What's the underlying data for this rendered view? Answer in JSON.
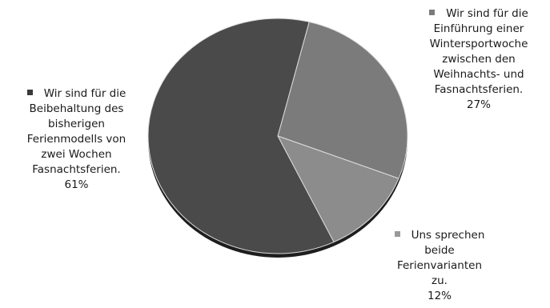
{
  "chart_data": {
    "type": "pie",
    "title": "",
    "slices": [
      {
        "name": "Wir sind für die Beibehaltung des bisherigen Ferienmodells von zwei Wochen Fasnachtsferien.",
        "lines": [
          "Wir sind für die",
          "Beibehaltung des",
          "bisherigen",
          "Ferienmodells von",
          "zwei Wochen",
          "Fasnachtsferien."
        ],
        "value": 61,
        "value_label": "61%",
        "color": "#4a4a4a",
        "marker_color": "#3a3a3a"
      },
      {
        "name": "Wir sind für die Einführung einer Wintersportwoche zwischen den Weihnachts- und Fasnachtsferien.",
        "lines": [
          "Wir sind für die",
          "Einführung einer",
          "Wintersportwoche",
          "zwischen den",
          "Weihnachts- und",
          "Fasnachtsferien."
        ],
        "value": 27,
        "value_label": "27%",
        "color": "#7b7b7b",
        "marker_color": "#7b7b7b"
      },
      {
        "name": "Uns sprechen beide Ferienvarianten zu.",
        "lines": [
          "Uns sprechen",
          "beide",
          "Ferienvarianten",
          "zu."
        ],
        "value": 12,
        "value_label": "12%",
        "color": "#8c8c8c",
        "marker_color": "#9a9a9a"
      }
    ],
    "legend": "none",
    "data_labels": "outside"
  }
}
